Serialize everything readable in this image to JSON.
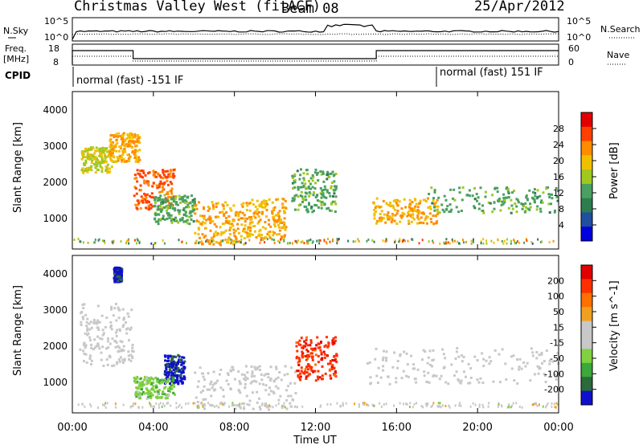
{
  "header": {
    "title": "Christmas Valley West (fitACF)",
    "beam": "Beam 08",
    "date": "25/Apr/2012"
  },
  "top_panels": {
    "nsky_label": "N.Sky",
    "nsearch_label": "N.Search",
    "noise_ticks_left": [
      "10^5",
      "10^0"
    ],
    "noise_ticks_right": [
      "10^5",
      "10^0"
    ],
    "freq_label_line1": "Freq.",
    "freq_label_line2": "[MHz]",
    "freq_ticks": [
      "18",
      "8"
    ],
    "nave_label": "Nave",
    "nave_ticks": [
      "60",
      "0"
    ],
    "cpid_label": "CPID",
    "cpid_mode_1": "normal (fast) -151 IF",
    "cpid_mode_2": "normal (fast) 151 IF"
  },
  "colors": {
    "power_scale": [
      "#0000dd",
      "#1f4f9e",
      "#2e7d4f",
      "#4aa060",
      "#a0c820",
      "#f0c000",
      "#ff8c00",
      "#ff4000",
      "#e00000"
    ],
    "velocity_scale": [
      "#1010cc",
      "#2b6a3a",
      "#3aa83a",
      "#80d040",
      "#c8c8c8",
      "#c8c8c8",
      "#f0a020",
      "#ff7000",
      "#ff3000",
      "#e00000"
    ]
  },
  "chart_data": [
    {
      "type": "heatmap",
      "panel": "power",
      "ylabel": "Slant Range [km]",
      "yticks": [
        "4000",
        "3000",
        "2000",
        "1000"
      ],
      "ylim": [
        180,
        4500
      ],
      "xlim": [
        "00:00",
        "24:00"
      ],
      "colorbar_label": "Power [dB]",
      "colorbar_ticks": [
        "28",
        "24",
        "20",
        "16",
        "12",
        "8",
        "4"
      ],
      "colorbar_range": [
        0,
        30
      ],
      "features": [
        {
          "name": "scatter-patch-a",
          "t_start": 0.4,
          "t_end": 2.0,
          "r_min": 2300,
          "r_max": 3000,
          "value": 16
        },
        {
          "name": "scatter-patch-b",
          "t_start": 1.8,
          "t_end": 3.3,
          "r_min": 2600,
          "r_max": 3400,
          "value": 20
        },
        {
          "name": "scatter-patch-c",
          "t_start": 3.0,
          "t_end": 5.0,
          "r_min": 1300,
          "r_max": 2400,
          "value": 24
        },
        {
          "name": "scatter-patch-d",
          "t_start": 4.0,
          "t_end": 6.0,
          "r_min": 900,
          "r_max": 1700,
          "value": 12
        },
        {
          "name": "scatter-patch-e",
          "t_start": 6.0,
          "t_end": 8.5,
          "r_min": 300,
          "r_max": 1500,
          "value": 20
        },
        {
          "name": "scatter-patch-f",
          "t_start": 8.5,
          "t_end": 10.5,
          "r_min": 500,
          "r_max": 1600,
          "value": 20
        },
        {
          "name": "scatter-patch-g",
          "t_start": 10.8,
          "t_end": 13.0,
          "r_min": 1200,
          "r_max": 2400,
          "value": 12
        },
        {
          "name": "scatter-patch-h",
          "t_start": 14.8,
          "t_end": 18.0,
          "r_min": 900,
          "r_max": 1600,
          "value": 20
        },
        {
          "name": "scatter-patch-i",
          "t_start": 17.5,
          "t_end": 24.0,
          "r_min": 1200,
          "r_max": 1900,
          "value": 12
        }
      ]
    },
    {
      "type": "heatmap",
      "panel": "velocity",
      "ylabel": "Slant Range [km]",
      "yticks": [
        "4000",
        "3000",
        "2000",
        "1000"
      ],
      "ylim": [
        180,
        4500
      ],
      "xlabel": "Time UT",
      "xticks": [
        "00:00",
        "04:00",
        "08:00",
        "12:00",
        "16:00",
        "20:00",
        "00:00"
      ],
      "xlim": [
        "00:00",
        "24:00"
      ],
      "colorbar_label": "Velocity [m s^-1]",
      "colorbar_ticks": [
        "200",
        "100",
        "50",
        "15",
        "-15",
        "-50",
        "-100",
        "-200"
      ],
      "colorbar_range": [
        -250,
        250
      ],
      "features": [
        {
          "name": "vel-patch-a",
          "t_start": 2.0,
          "t_end": 2.4,
          "r_min": 3800,
          "r_max": 4200,
          "value": -220
        },
        {
          "name": "vel-patch-b",
          "t_start": 0.3,
          "t_end": 3.0,
          "r_min": 1500,
          "r_max": 3200,
          "value": 0
        },
        {
          "name": "vel-patch-c",
          "t_start": 4.5,
          "t_end": 5.5,
          "r_min": 1000,
          "r_max": 1800,
          "value": -220
        },
        {
          "name": "vel-patch-d",
          "t_start": 3.0,
          "t_end": 5.0,
          "r_min": 600,
          "r_max": 1200,
          "value": -80
        },
        {
          "name": "vel-patch-e",
          "t_start": 6.0,
          "t_end": 11.0,
          "r_min": 300,
          "r_max": 1500,
          "value": 0
        },
        {
          "name": "vel-patch-f",
          "t_start": 11.0,
          "t_end": 13.0,
          "r_min": 1100,
          "r_max": 2300,
          "value": 180
        },
        {
          "name": "vel-patch-g",
          "t_start": 14.5,
          "t_end": 24.0,
          "r_min": 1000,
          "r_max": 2000,
          "value": 0
        }
      ]
    }
  ]
}
